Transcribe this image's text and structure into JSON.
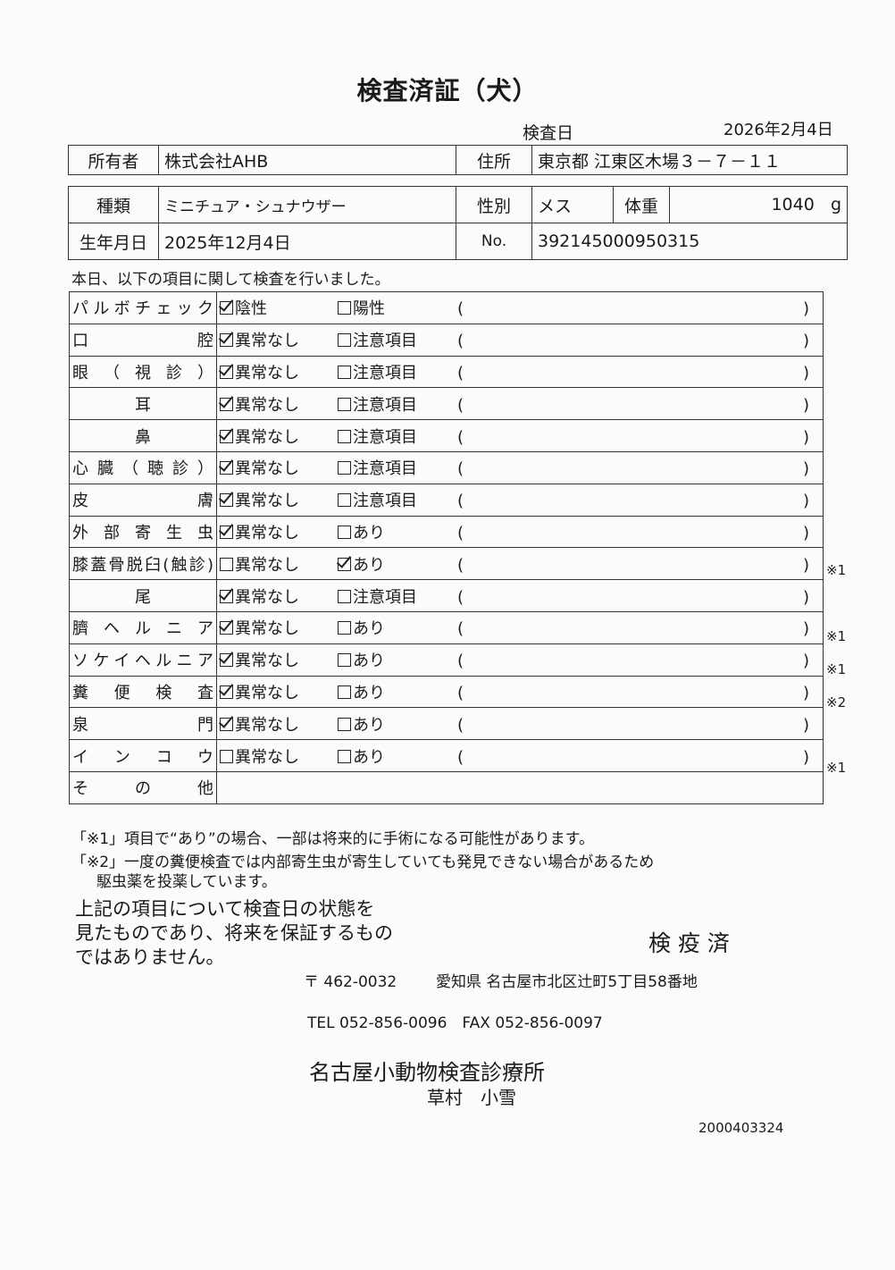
{
  "title": "検査済証（犬）",
  "exam_date_label": "検査日",
  "exam_date": "2026年2月4日",
  "owner": {
    "label": "所有者",
    "value": "株式会社AHB",
    "address_label": "住所",
    "address": "東京都 江東区木場３－７－１１"
  },
  "pet": {
    "breed_label": "種類",
    "breed": "ミニチュア・シュナウザー",
    "sex_label": "性別",
    "sex": "メス",
    "weight_label": "体重",
    "weight": "1040",
    "weight_unit": "g",
    "birth_label": "生年月日",
    "birth": "2025年12月4日",
    "no_label": "No.",
    "no": "392145000950315"
  },
  "intro": "本日、以下の項目に関して検査を行いました。",
  "rows": [
    {
      "label": "パルボチェック",
      "o1": "陰性",
      "c1": true,
      "o2": "陽性",
      "c2": false,
      "paren_open": "(",
      "paren_close": ")",
      "mark": ""
    },
    {
      "label": "口腔",
      "o1": "異常なし",
      "c1": true,
      "o2": "注意項目",
      "c2": false,
      "paren_open": "(",
      "paren_close": ")",
      "mark": ""
    },
    {
      "label": "眼（視診）",
      "o1": "異常なし",
      "c1": true,
      "o2": "注意項目",
      "c2": false,
      "paren_open": "(",
      "paren_close": ")",
      "mark": ""
    },
    {
      "label": "耳",
      "o1": "異常なし",
      "c1": true,
      "o2": "注意項目",
      "c2": false,
      "paren_open": "(",
      "paren_close": ")",
      "mark": "",
      "center": true
    },
    {
      "label": "鼻",
      "o1": "異常なし",
      "c1": true,
      "o2": "注意項目",
      "c2": false,
      "paren_open": "(",
      "paren_close": ")",
      "mark": "",
      "center": true
    },
    {
      "label": "心臓（聴診）",
      "o1": "異常なし",
      "c1": true,
      "o2": "注意項目",
      "c2": false,
      "paren_open": "(",
      "paren_close": ")",
      "mark": ""
    },
    {
      "label": "皮膚",
      "o1": "異常なし",
      "c1": true,
      "o2": "注意項目",
      "c2": false,
      "paren_open": "(",
      "paren_close": ")",
      "mark": ""
    },
    {
      "label": "外部寄生虫",
      "o1": "異常なし",
      "c1": true,
      "o2": "あり",
      "c2": false,
      "paren_open": "(",
      "paren_close": ")",
      "mark": ""
    },
    {
      "label": "膝蓋骨脱臼(触診)",
      "o1": "異常なし",
      "c1": false,
      "o2": "あり",
      "c2": true,
      "paren_open": "(",
      "paren_close": ")",
      "mark": "※1"
    },
    {
      "label": "尾",
      "o1": "異常なし",
      "c1": true,
      "o2": "注意項目",
      "c2": false,
      "paren_open": "(",
      "paren_close": ")",
      "mark": "",
      "center": true
    },
    {
      "label": "臍ヘルニア",
      "o1": "異常なし",
      "c1": true,
      "o2": "あり",
      "c2": false,
      "paren_open": "(",
      "paren_close": ")",
      "mark": "※1"
    },
    {
      "label": "ソケイヘルニア",
      "o1": "異常なし",
      "c1": true,
      "o2": "あり",
      "c2": false,
      "paren_open": "(",
      "paren_close": ")",
      "mark": "※1"
    },
    {
      "label": "糞便検査",
      "o1": "異常なし",
      "c1": true,
      "o2": "あり",
      "c2": false,
      "paren_open": "(",
      "paren_close": ")",
      "mark": "※2"
    },
    {
      "label": "泉門",
      "o1": "異常なし",
      "c1": true,
      "o2": "あり",
      "c2": false,
      "paren_open": "(",
      "paren_close": ")",
      "mark": ""
    },
    {
      "label": "インコウ",
      "o1": "異常なし",
      "c1": false,
      "o2": "あり",
      "c2": false,
      "paren_open": "(",
      "paren_close": ")",
      "mark": "※1"
    },
    {
      "label": "その他",
      "o1": "",
      "o2": "",
      "mark": ""
    }
  ],
  "note1": "「※1」項目で“あり”の場合、一部は将来的に手術になる可能性があります。",
  "note2a": "「※2」一度の糞便検査では内部寄生虫が寄生していても発見できない場合があるため",
  "note2b": "駆虫薬を投薬しています。",
  "disclaimer": [
    "上記の項目について検査日の状態を",
    "見たものであり、将来を保証するもの",
    "ではありません。"
  ],
  "stamp": "検 疫 済",
  "postal": "〒 462-0032",
  "address": "愛知県 名古屋市北区辻町5丁目58番地",
  "tel": "TEL 052-856-0096　FAX 052-856-0097",
  "clinic": "名古屋小動物検査診療所",
  "person": "草村　小雪",
  "doc_no": "2000403324"
}
